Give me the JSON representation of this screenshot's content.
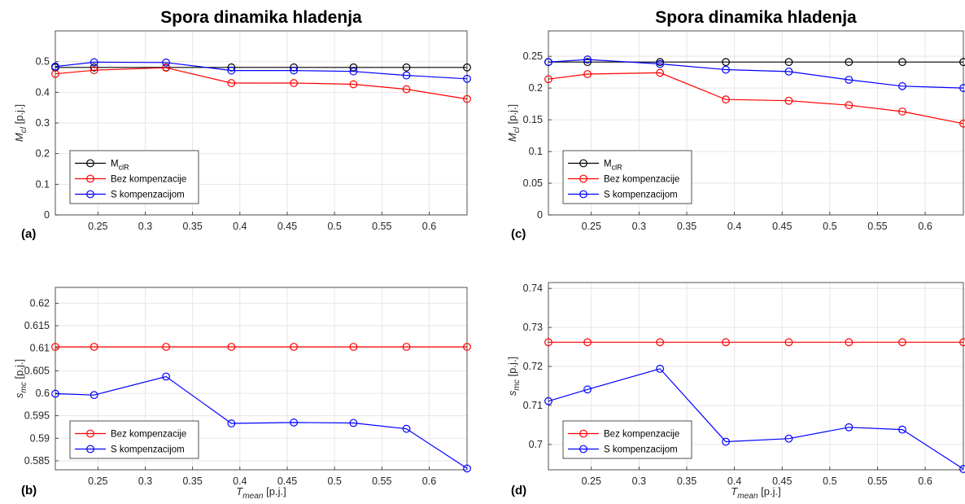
{
  "chart_data": [
    {
      "type": "line",
      "panel_label": "(a)",
      "title": "Spora dinamika hladenja",
      "ylabel": {
        "main": "M",
        "sub": "cl",
        "unit": " [p.j.]"
      },
      "xlabel": null,
      "xlim": [
        0.205,
        0.64
      ],
      "ylim": [
        0,
        0.6
      ],
      "xticks": [
        0.25,
        0.3,
        0.35,
        0.4,
        0.45,
        0.5,
        0.55,
        0.6
      ],
      "xtick_labels": [
        "0.25",
        "0.3",
        "0.35",
        "0.4",
        "0.45",
        "0.5",
        "0.55",
        "0.6"
      ],
      "yticks": [
        0,
        0.1,
        0.2,
        0.3,
        0.4,
        0.5
      ],
      "ytick_labels": [
        "0",
        "0.1",
        "0.2",
        "0.3",
        "0.4",
        "0.5"
      ],
      "grid": true,
      "legend_position": "bottom-left",
      "x": [
        0.205,
        0.246,
        0.322,
        0.391,
        0.457,
        0.52,
        0.576,
        0.64
      ],
      "series": [
        {
          "key": "black",
          "legend": {
            "main": "M",
            "sub": "clR"
          },
          "color": "#000000",
          "values": [
            0.481,
            0.481,
            0.481,
            0.481,
            0.481,
            0.481,
            0.481,
            0.481
          ]
        },
        {
          "key": "red",
          "legend": {
            "main": "Bez kompenzacije",
            "sub": ""
          },
          "color": "#ff0000",
          "values": [
            0.46,
            0.472,
            0.48,
            0.43,
            0.43,
            0.426,
            0.41,
            0.378
          ]
        },
        {
          "key": "blue",
          "legend": {
            "main": "S kompenzacijom",
            "sub": ""
          },
          "color": "#0000ff",
          "values": [
            0.484,
            0.498,
            0.497,
            0.471,
            0.471,
            0.468,
            0.455,
            0.444
          ]
        }
      ]
    },
    {
      "type": "line",
      "panel_label": "(b)",
      "title": "",
      "ylabel": {
        "main": "s",
        "sub": "mc",
        "unit": " [p.j.]"
      },
      "xlabel": {
        "main": "T",
        "sub": "mean",
        "unit": " [p.j.]"
      },
      "xlim": [
        0.205,
        0.64
      ],
      "ylim": [
        0.583,
        0.6235
      ],
      "xticks": [
        0.25,
        0.3,
        0.35,
        0.4,
        0.45,
        0.5,
        0.55,
        0.6
      ],
      "xtick_labels": [
        "0.25",
        "0.3",
        "0.35",
        "0.4",
        "0.45",
        "0.5",
        "0.55",
        "0.6"
      ],
      "yticks": [
        0.585,
        0.59,
        0.595,
        0.6,
        0.605,
        0.61,
        0.615,
        0.62
      ],
      "ytick_labels": [
        "0.585",
        "0.59",
        "0.595",
        "0.6",
        "0.605",
        "0.61",
        "0.615",
        "0.62"
      ],
      "grid": true,
      "legend_position": "bottom-left",
      "x": [
        0.205,
        0.246,
        0.322,
        0.391,
        0.457,
        0.52,
        0.576,
        0.64
      ],
      "series": [
        {
          "key": "red",
          "legend": {
            "main": "Bez kompenzacije",
            "sub": ""
          },
          "color": "#ff0000",
          "values": [
            0.6103,
            0.6103,
            0.6103,
            0.6103,
            0.6103,
            0.6103,
            0.6103,
            0.6103
          ]
        },
        {
          "key": "blue",
          "legend": {
            "main": "S kompenzacijom",
            "sub": ""
          },
          "color": "#0000ff",
          "values": [
            0.5999,
            0.5996,
            0.6037,
            0.5933,
            0.5935,
            0.5934,
            0.5921,
            0.5833
          ]
        }
      ]
    },
    {
      "type": "line",
      "panel_label": "(c)",
      "title": "Spora dinamika hladenja",
      "ylabel": {
        "main": "M",
        "sub": "cl",
        "unit": " [p.j.]"
      },
      "xlabel": null,
      "xlim": [
        0.205,
        0.64
      ],
      "ylim": [
        0,
        0.29
      ],
      "xticks": [
        0.25,
        0.3,
        0.35,
        0.4,
        0.45,
        0.5,
        0.55,
        0.6
      ],
      "xtick_labels": [
        "0.25",
        "0.3",
        "0.35",
        "0.4",
        "0.45",
        "0.5",
        "0.55",
        "0.6"
      ],
      "yticks": [
        0,
        0.05,
        0.1,
        0.15,
        0.2,
        0.25
      ],
      "ytick_labels": [
        "0",
        "0.05",
        "0.1",
        "0.15",
        "0.2",
        "0.25"
      ],
      "grid": true,
      "legend_position": "bottom-left",
      "x": [
        0.205,
        0.246,
        0.322,
        0.391,
        0.457,
        0.52,
        0.576,
        0.64
      ],
      "series": [
        {
          "key": "black",
          "legend": {
            "main": "M",
            "sub": "clR"
          },
          "color": "#000000",
          "values": [
            0.241,
            0.241,
            0.241,
            0.241,
            0.241,
            0.241,
            0.241,
            0.241
          ]
        },
        {
          "key": "red",
          "legend": {
            "main": "Bez kompenzacije",
            "sub": ""
          },
          "color": "#ff0000",
          "values": [
            0.214,
            0.222,
            0.224,
            0.182,
            0.18,
            0.173,
            0.163,
            0.144
          ]
        },
        {
          "key": "blue",
          "legend": {
            "main": "S kompenzacijom",
            "sub": ""
          },
          "color": "#0000ff",
          "values": [
            0.241,
            0.245,
            0.238,
            0.229,
            0.226,
            0.213,
            0.203,
            0.2
          ]
        }
      ]
    },
    {
      "type": "line",
      "panel_label": "(d)",
      "title": "",
      "ylabel": {
        "main": "s",
        "sub": "mc",
        "unit": " [p.j.]"
      },
      "xlabel": {
        "main": "T",
        "sub": "mean",
        "unit": " [p.j.]"
      },
      "xlim": [
        0.205,
        0.64
      ],
      "ylim": [
        0.6935,
        0.7415
      ],
      "xticks": [
        0.25,
        0.3,
        0.35,
        0.4,
        0.45,
        0.5,
        0.55,
        0.6
      ],
      "xtick_labels": [
        "0.25",
        "0.3",
        "0.35",
        "0.4",
        "0.45",
        "0.5",
        "0.55",
        "0.6"
      ],
      "yticks": [
        0.7,
        0.71,
        0.72,
        0.73,
        0.74
      ],
      "ytick_labels": [
        "0.7",
        "0.71",
        "0.72",
        "0.73",
        "0.74"
      ],
      "grid": true,
      "legend_position": "bottom-left",
      "x": [
        0.205,
        0.246,
        0.322,
        0.391,
        0.457,
        0.52,
        0.576,
        0.64
      ],
      "series": [
        {
          "key": "red",
          "legend": {
            "main": "Bez kompenzacije",
            "sub": ""
          },
          "color": "#ff0000",
          "values": [
            0.7262,
            0.7262,
            0.7262,
            0.7262,
            0.7262,
            0.7262,
            0.7262,
            0.7262
          ]
        },
        {
          "key": "blue",
          "legend": {
            "main": "S kompenzacijom",
            "sub": ""
          },
          "color": "#0000ff",
          "values": [
            0.7111,
            0.7141,
            0.7194,
            0.7007,
            0.7015,
            0.7044,
            0.7038,
            0.6937
          ]
        }
      ]
    }
  ]
}
